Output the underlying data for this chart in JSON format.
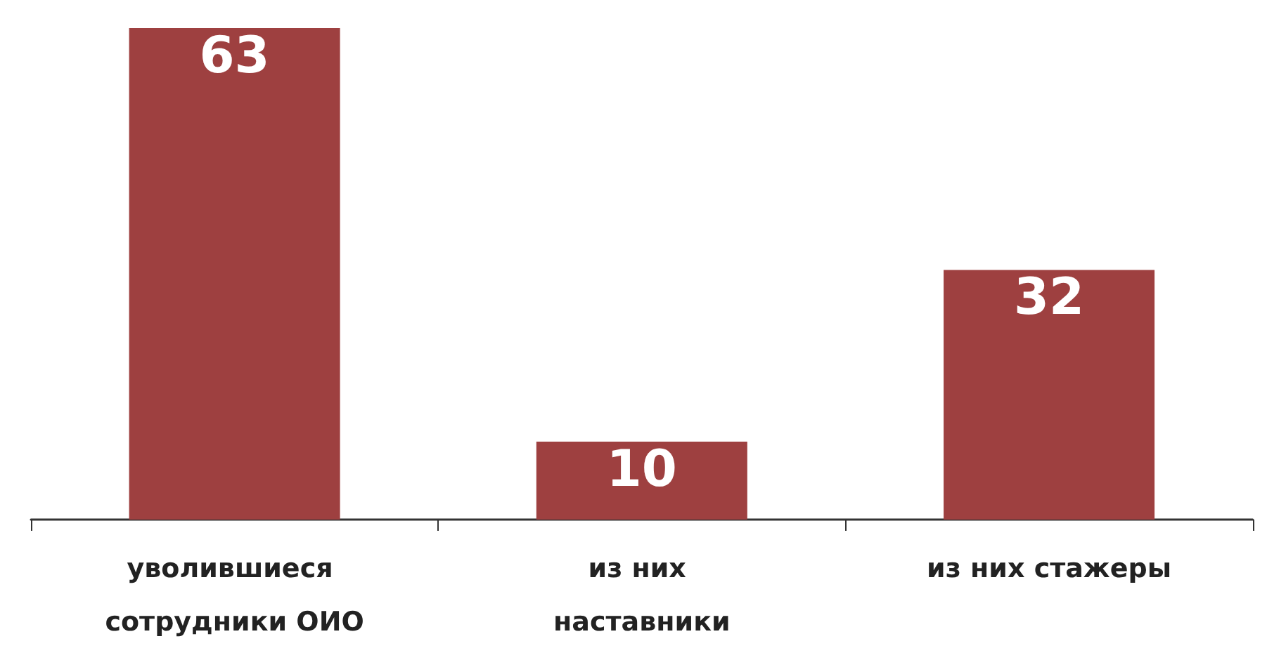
{
  "chart_data": {
    "type": "bar",
    "categories": [
      "уволившиеся сотрудники ОИО",
      "из них наставники",
      "из них стажеры"
    ],
    "values": [
      63,
      10,
      32
    ],
    "color": "#9e4040",
    "data_labels": true
  }
}
